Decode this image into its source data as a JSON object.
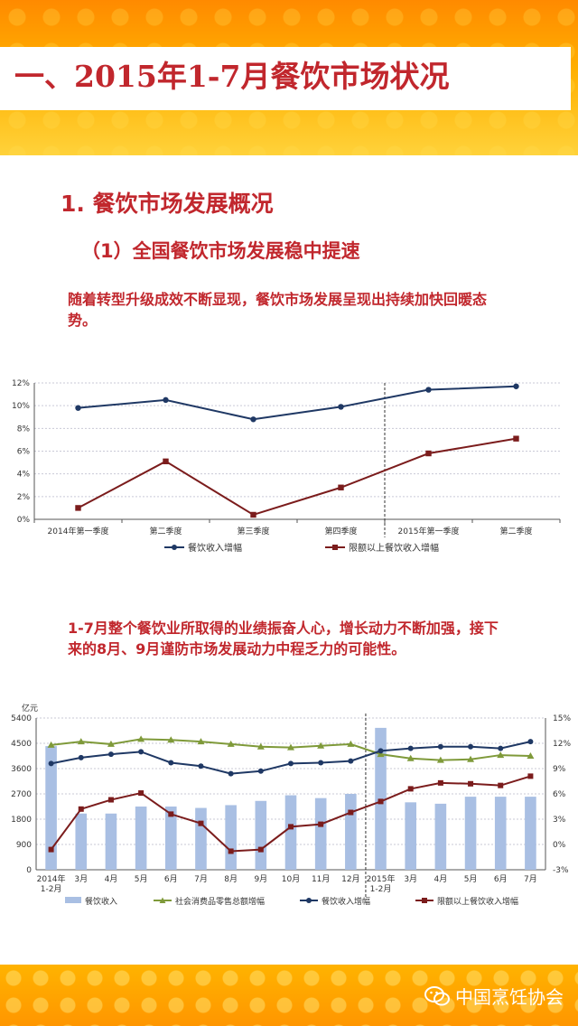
{
  "header": {
    "title": "一、2015年1-7月餐饮市场状况"
  },
  "section": {
    "heading": "1. 餐饮市场发展概况",
    "subheading": "（1）全国餐饮市场发展稳中提速",
    "para1": "随着转型升级成效不断显现，餐饮市场发展呈现出持续加快回暖态势。",
    "para2": "1-7月整个餐饮业所取得的业绩振奋人心，增长动力不断加强，接下来的8月、9月谨防市场发展动力中程乏力的可能性。"
  },
  "watermark": {
    "text": "中国烹饪协会",
    "icon": "wechat-icon"
  },
  "colors": {
    "accent_red": "#c1272d",
    "navy": "#1f3864",
    "maroon": "#7b1c1c",
    "green": "#7f9a3a",
    "bar_blue": "#a9bfe3",
    "banner_orange": "#ff9600"
  },
  "chart_data": [
    {
      "type": "line",
      "title": "",
      "categories": [
        "2014年第一季度",
        "第二季度",
        "第三季度",
        "第四季度",
        "2015年第一季度",
        "第二季度"
      ],
      "series": [
        {
          "name": "餐饮收入增幅",
          "color": "#1f3864",
          "values": [
            9.8,
            10.5,
            8.8,
            9.9,
            11.4,
            11.7
          ]
        },
        {
          "name": "限额以上餐饮收入增幅",
          "color": "#7b1c1c",
          "values": [
            1.0,
            5.1,
            0.4,
            2.8,
            5.8,
            7.1
          ]
        }
      ],
      "yticks": [
        "0%",
        "2%",
        "4%",
        "6%",
        "8%",
        "10%",
        "12%"
      ],
      "ylim": [
        0,
        12
      ],
      "divider_after_index": 3,
      "grid": true,
      "legend": "bottom"
    },
    {
      "type": "bar",
      "title": "",
      "ylabel_left": "亿元",
      "categories": [
        "2014年 1-2月",
        "3月",
        "4月",
        "5月",
        "6月",
        "7月",
        "8月",
        "9月",
        "10月",
        "11月",
        "12月",
        "2015年 1-2月",
        "3月",
        "4月",
        "5月",
        "6月",
        "7月"
      ],
      "left_yticks": [
        "0",
        "900",
        "1800",
        "2700",
        "3600",
        "4500",
        "5400"
      ],
      "left_ylim": [
        0,
        5400
      ],
      "right_yticks": [
        "-3%",
        "0%",
        "3%",
        "6%",
        "9%",
        "12%",
        "15%"
      ],
      "right_ylim": [
        -3,
        15
      ],
      "bars": {
        "name": "餐饮收入",
        "color": "#a9bfe3",
        "values": [
          4400,
          2000,
          2000,
          2250,
          2250,
          2200,
          2300,
          2450,
          2650,
          2550,
          2700,
          5050,
          2400,
          2350,
          2600,
          2600,
          2600
        ]
      },
      "series": [
        {
          "name": "社会消费品零售总额增幅",
          "color": "#7f9a3a",
          "values": [
            11.8,
            12.2,
            11.9,
            12.5,
            12.4,
            12.2,
            11.9,
            11.6,
            11.5,
            11.7,
            11.9,
            10.7,
            10.2,
            10.0,
            10.1,
            10.6,
            10.5
          ]
        },
        {
          "name": "餐饮收入增幅",
          "color": "#1f3864",
          "values": [
            9.6,
            10.3,
            10.7,
            11.0,
            9.7,
            9.3,
            8.4,
            8.7,
            9.6,
            9.7,
            9.9,
            11.1,
            11.4,
            11.6,
            11.6,
            11.4,
            12.2
          ]
        },
        {
          "name": "限额以上餐饮收入增幅",
          "color": "#7b1c1c",
          "values": [
            -0.6,
            4.2,
            5.3,
            6.1,
            3.6,
            2.5,
            -0.8,
            -0.6,
            2.1,
            2.4,
            3.8,
            5.1,
            6.6,
            7.3,
            7.2,
            7.0,
            8.1
          ]
        }
      ],
      "divider_after_index": 10,
      "grid": true,
      "legend": "bottom"
    }
  ]
}
